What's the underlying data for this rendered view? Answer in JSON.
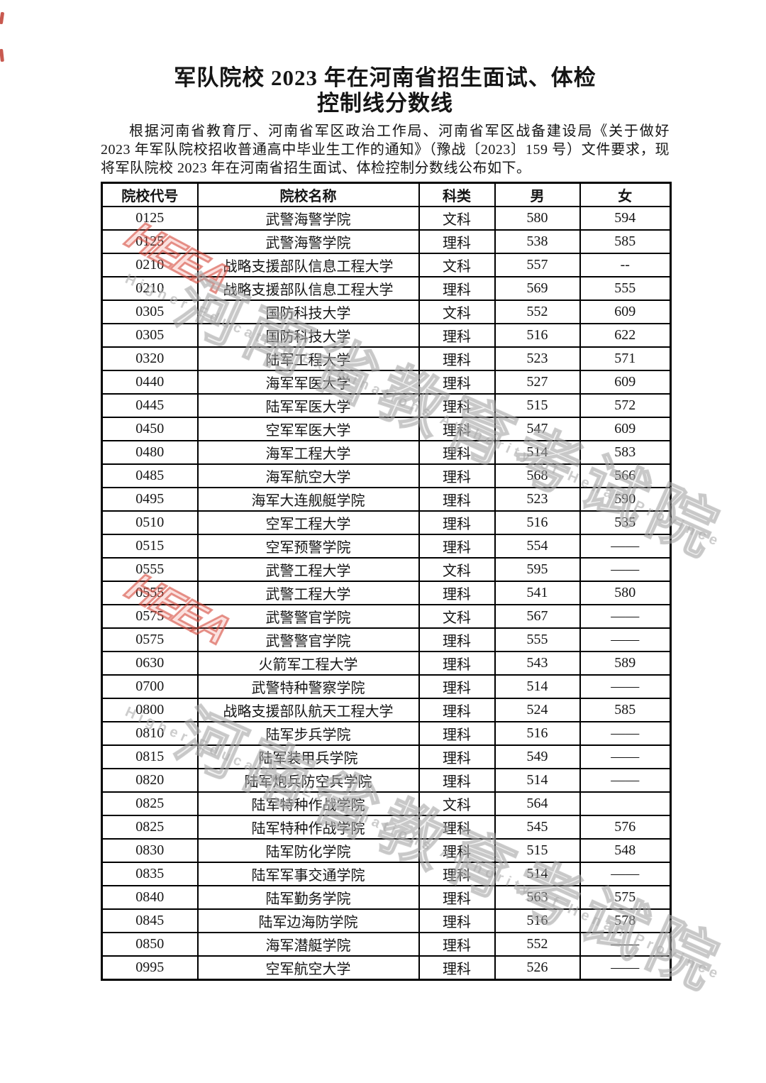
{
  "document": {
    "title_line1": "军队院校 2023 年在河南省招生面试、体检",
    "title_line2": "控制线分数线",
    "paragraph": "根据河南省教育厅、河南省军区政治工作局、河南省军区战备建设局《关于做好 2023 年军队院校招收普通高中毕业生工作的通知》（豫战〔2023〕159 号）文件要求，现将军队院校 2023 年在河南省招生面试、体检控制分数线公布如下。"
  },
  "table": {
    "headers": [
      "院校代号",
      "院校名称",
      "科类",
      "男",
      "女"
    ],
    "rows": [
      {
        "code": "0125",
        "name": "武警海警学院",
        "category": "文科",
        "male": "580",
        "female": "594"
      },
      {
        "code": "0125",
        "name": "武警海警学院",
        "category": "理科",
        "male": "538",
        "female": "585"
      },
      {
        "code": "0210",
        "name": "战略支援部队信息工程大学",
        "category": "文科",
        "male": "557",
        "female": "--"
      },
      {
        "code": "0210",
        "name": "战略支援部队信息工程大学",
        "category": "理科",
        "male": "569",
        "female": "555"
      },
      {
        "code": "0305",
        "name": "国防科技大学",
        "category": "文科",
        "male": "552",
        "female": "609"
      },
      {
        "code": "0305",
        "name": "国防科技大学",
        "category": "理科",
        "male": "516",
        "female": "622"
      },
      {
        "code": "0320",
        "name": "陆军工程大学",
        "category": "理科",
        "male": "523",
        "female": "571"
      },
      {
        "code": "0440",
        "name": "海军军医大学",
        "category": "理科",
        "male": "527",
        "female": "609"
      },
      {
        "code": "0445",
        "name": "陆军军医大学",
        "category": "理科",
        "male": "515",
        "female": "572"
      },
      {
        "code": "0450",
        "name": "空军军医大学",
        "category": "理科",
        "male": "547",
        "female": "609"
      },
      {
        "code": "0480",
        "name": "海军工程大学",
        "category": "理科",
        "male": "514",
        "female": "583"
      },
      {
        "code": "0485",
        "name": "海军航空大学",
        "category": "理科",
        "male": "568",
        "female": "566"
      },
      {
        "code": "0495",
        "name": "海军大连舰艇学院",
        "category": "理科",
        "male": "523",
        "female": "590"
      },
      {
        "code": "0510",
        "name": "空军工程大学",
        "category": "理科",
        "male": "516",
        "female": "535"
      },
      {
        "code": "0515",
        "name": "空军预警学院",
        "category": "理科",
        "male": "554",
        "female": "——"
      },
      {
        "code": "0555",
        "name": "武警工程大学",
        "category": "文科",
        "male": "595",
        "female": "——"
      },
      {
        "code": "0555",
        "name": "武警工程大学",
        "category": "理科",
        "male": "541",
        "female": "580"
      },
      {
        "code": "0575",
        "name": "武警警官学院",
        "category": "文科",
        "male": "567",
        "female": "——"
      },
      {
        "code": "0575",
        "name": "武警警官学院",
        "category": "理科",
        "male": "555",
        "female": "——"
      },
      {
        "code": "0630",
        "name": "火箭军工程大学",
        "category": "理科",
        "male": "543",
        "female": "589"
      },
      {
        "code": "0700",
        "name": "武警特种警察学院",
        "category": "理科",
        "male": "514",
        "female": "——"
      },
      {
        "code": "0800",
        "name": "战略支援部队航天工程大学",
        "category": "理科",
        "male": "524",
        "female": "585"
      },
      {
        "code": "0810",
        "name": "陆军步兵学院",
        "category": "理科",
        "male": "516",
        "female": "——"
      },
      {
        "code": "0815",
        "name": "陆军装甲兵学院",
        "category": "理科",
        "male": "549",
        "female": "——"
      },
      {
        "code": "0820",
        "name": "陆军炮兵防空兵学院",
        "category": "理科",
        "male": "514",
        "female": "——"
      },
      {
        "code": "0825",
        "name": "陆军特种作战学院",
        "category": "文科",
        "male": "564",
        "female": ""
      },
      {
        "code": "0825",
        "name": "陆军特种作战学院",
        "category": "理科",
        "male": "545",
        "female": "576"
      },
      {
        "code": "0830",
        "name": "陆军防化学院",
        "category": "理科",
        "male": "515",
        "female": "548"
      },
      {
        "code": "0835",
        "name": "陆军军事交通学院",
        "category": "理科",
        "male": "514",
        "female": "——"
      },
      {
        "code": "0840",
        "name": "陆军勤务学院",
        "category": "理科",
        "male": "563",
        "female": "575"
      },
      {
        "code": "0845",
        "name": "陆军边海防学院",
        "category": "理科",
        "male": "516",
        "female": "578"
      },
      {
        "code": "0850",
        "name": "海军潜艇学院",
        "category": "理科",
        "male": "552",
        "female": "——"
      },
      {
        "code": "0995",
        "name": "空军航空大学",
        "category": "理科",
        "male": "526",
        "female": "——"
      }
    ]
  },
  "watermark": {
    "cn": "河南省教育考试院",
    "en": "Higher Education Examinations Authority of Henan Province",
    "logo": "HEEA",
    "gray_color": "#aaaaaa",
    "stamp_color": "#d64d40"
  }
}
